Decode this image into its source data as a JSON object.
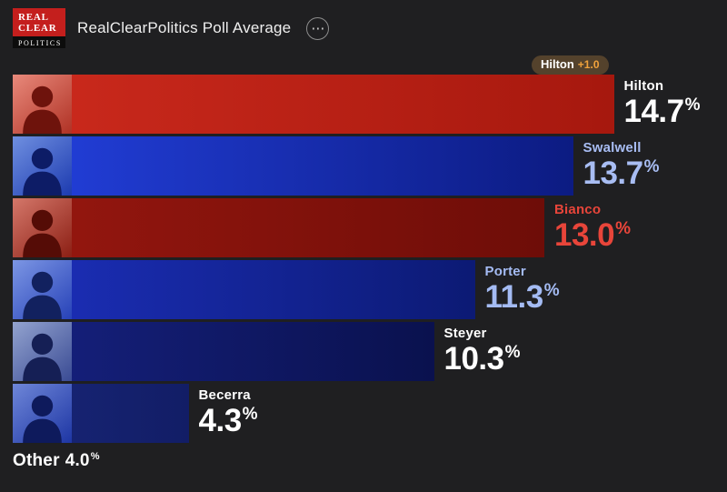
{
  "header": {
    "logo": {
      "line1": "REAL",
      "line2": "CLEAR",
      "line3": "POLITICS"
    },
    "title": "RealClearPolitics Poll Average",
    "menu_glyph": "⋯"
  },
  "badge": {
    "name": "Hilton",
    "delta": "+1.0",
    "bg": "#54422c",
    "delta_color": "#f0a23c"
  },
  "strings": {
    "percent": "%"
  },
  "candidates": [
    {
      "name": "Hilton",
      "value_label": "14.7",
      "label_color": "#ffffff",
      "bar_from": "#cc2a1d",
      "bar_to": "#a6180e",
      "avatar_from": "#e8897b",
      "avatar_to": "#b03225",
      "avatar_fg": "#6e130c"
    },
    {
      "name": "Swalwell",
      "value_label": "13.7",
      "label_color": "#a8bdf3",
      "bar_from": "#2340dd",
      "bar_to": "#0c1b82",
      "avatar_from": "#6f8fe0",
      "avatar_to": "#1d3bb0",
      "avatar_fg": "#0d1c66"
    },
    {
      "name": "Bianco",
      "value_label": "13.0",
      "label_color": "#e8453a",
      "bar_from": "#97170f",
      "bar_to": "#6e0d08",
      "avatar_from": "#d4776a",
      "avatar_to": "#8c1f14",
      "avatar_fg": "#550c06"
    },
    {
      "name": "Porter",
      "value_label": "11.3",
      "label_color": "#a4bbf3",
      "bar_from": "#1c2fba",
      "bar_to": "#0c1a74",
      "avatar_from": "#7c96e4",
      "avatar_to": "#2742b8",
      "avatar_fg": "#12215f"
    },
    {
      "name": "Steyer",
      "value_label": "10.3",
      "label_color": "#ffffff",
      "bar_from": "#16217f",
      "bar_to": "#0a114e",
      "avatar_from": "#93a3cf",
      "avatar_to": "#3a4b94",
      "avatar_fg": "#151f55"
    },
    {
      "name": "Becerra",
      "value_label": "4.3",
      "label_color": "#ffffff",
      "bar_from": "#182677",
      "bar_to": "#121d66",
      "avatar_from": "#6e86d8",
      "avatar_to": "#1e36a4",
      "avatar_fg": "#0e1a5c"
    }
  ],
  "other": {
    "label": "Other",
    "value_label": "4.0"
  },
  "chart_data": {
    "type": "bar",
    "orientation": "horizontal",
    "title": "RealClearPolitics Poll Average",
    "categories": [
      "Hilton",
      "Swalwell",
      "Bianco",
      "Porter",
      "Steyer",
      "Becerra",
      "Other"
    ],
    "values": [
      14.7,
      13.7,
      13.0,
      11.3,
      10.3,
      4.3,
      4.0
    ],
    "unit": "%",
    "xlim": [
      0,
      16
    ],
    "legend": "none",
    "grid": false,
    "annotations": [
      {
        "target": "Hilton",
        "text": "Hilton +1.0",
        "meaning": "leader margin"
      }
    ],
    "bar_colors": [
      "#c0251a",
      "#1a33c4",
      "#8c130c",
      "#1628a8",
      "#111a6e",
      "#152270"
    ]
  }
}
